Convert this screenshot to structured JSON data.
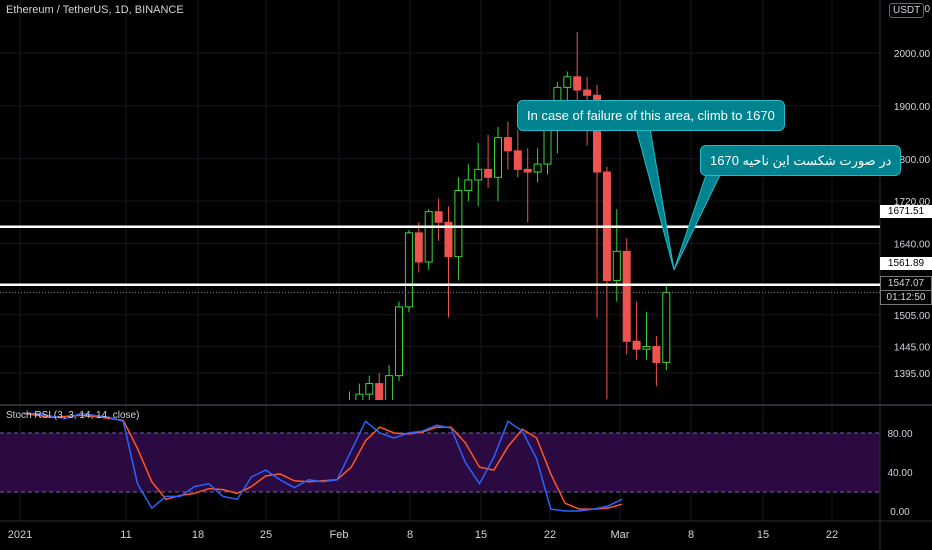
{
  "header": {
    "title": "Ethereum / TetherUS, 1D, BINANCE",
    "currency": "USDT"
  },
  "rsi": {
    "title": "Stoch RSI (3, 3, 14, 14, close)",
    "ticks": [
      "80.00",
      "40.00",
      "0.00"
    ]
  },
  "annotations": {
    "english": "In case of failure of this area, climb to 1670",
    "persian": "در صورت شکست این ناحیه 1670"
  },
  "price_labels": {
    "top_cut": "2100.00",
    "upper_line": "1671.51",
    "lower_line": "1561.89",
    "last_price": "1547.07",
    "countdown": "01:12:50"
  },
  "colors": {
    "up": "#26a69a",
    "up_bright": "#3ad43a",
    "down": "#ef5350",
    "k_line": "#2962ff",
    "d_line": "#ff5722",
    "rsi_band": "#2a0a40",
    "callout": "#00838f"
  },
  "chart_data": {
    "type": "candlestick",
    "title": "Ethereum / TetherUS, 1D, BINANCE",
    "y_ticks": [
      2000,
      1900,
      1800,
      1720,
      1640,
      1505,
      1445,
      1395
    ],
    "y_tick_labels": [
      "2000.00",
      "1900.00",
      "1800.00",
      "1720.00",
      "1640.00",
      "1505.00",
      "1445.00",
      "1395.00"
    ],
    "x_tick_labels": [
      "2021",
      "11",
      "18",
      "25",
      "Feb",
      "8",
      "15",
      "22",
      "Mar",
      "8",
      "15",
      "22"
    ],
    "horizontal_lines": [
      1671.51,
      1561.89
    ],
    "last_price": 1547.07,
    "candles": [
      {
        "d": "Jan 28",
        "o": 1320,
        "h": 1360,
        "l": 1300,
        "c": 1340
      },
      {
        "d": "Jan 29",
        "o": 1340,
        "h": 1375,
        "l": 1320,
        "c": 1355
      },
      {
        "d": "Jan 30",
        "o": 1355,
        "h": 1390,
        "l": 1330,
        "c": 1375
      },
      {
        "d": "Jan 31",
        "o": 1375,
        "h": 1395,
        "l": 1320,
        "c": 1330
      },
      {
        "d": "Feb 1",
        "o": 1330,
        "h": 1410,
        "l": 1305,
        "c": 1390
      },
      {
        "d": "Feb 2",
        "o": 1390,
        "h": 1530,
        "l": 1380,
        "c": 1520
      },
      {
        "d": "Feb 3",
        "o": 1520,
        "h": 1665,
        "l": 1510,
        "c": 1660
      },
      {
        "d": "Feb 4",
        "o": 1660,
        "h": 1680,
        "l": 1585,
        "c": 1605
      },
      {
        "d": "Feb 5",
        "o": 1605,
        "h": 1705,
        "l": 1590,
        "c": 1700
      },
      {
        "d": "Feb 6",
        "o": 1700,
        "h": 1725,
        "l": 1645,
        "c": 1680
      },
      {
        "d": "Feb 7",
        "o": 1680,
        "h": 1710,
        "l": 1500,
        "c": 1615
      },
      {
        "d": "Feb 8",
        "o": 1615,
        "h": 1765,
        "l": 1570,
        "c": 1740
      },
      {
        "d": "Feb 9",
        "o": 1740,
        "h": 1790,
        "l": 1720,
        "c": 1760
      },
      {
        "d": "Feb 10",
        "o": 1760,
        "h": 1830,
        "l": 1710,
        "c": 1780
      },
      {
        "d": "Feb 11",
        "o": 1780,
        "h": 1845,
        "l": 1745,
        "c": 1765
      },
      {
        "d": "Feb 12",
        "o": 1765,
        "h": 1860,
        "l": 1720,
        "c": 1840
      },
      {
        "d": "Feb 13",
        "o": 1840,
        "h": 1870,
        "l": 1780,
        "c": 1815
      },
      {
        "d": "Feb 14",
        "o": 1815,
        "h": 1855,
        "l": 1765,
        "c": 1780
      },
      {
        "d": "Feb 15",
        "o": 1780,
        "h": 1820,
        "l": 1680,
        "c": 1775
      },
      {
        "d": "Feb 16",
        "o": 1775,
        "h": 1820,
        "l": 1755,
        "c": 1790
      },
      {
        "d": "Feb 17",
        "o": 1790,
        "h": 1880,
        "l": 1770,
        "c": 1865
      },
      {
        "d": "Feb 18",
        "o": 1865,
        "h": 1945,
        "l": 1810,
        "c": 1935
      },
      {
        "d": "Feb 19",
        "o": 1935,
        "h": 1965,
        "l": 1905,
        "c": 1955
      },
      {
        "d": "Feb 20",
        "o": 1955,
        "h": 2040,
        "l": 1870,
        "c": 1930
      },
      {
        "d": "Feb 21",
        "o": 1930,
        "h": 1955,
        "l": 1825,
        "c": 1920
      },
      {
        "d": "Feb 22",
        "o": 1920,
        "h": 1940,
        "l": 1500,
        "c": 1775
      },
      {
        "d": "Feb 23",
        "o": 1775,
        "h": 1785,
        "l": 1345,
        "c": 1570
      },
      {
        "d": "Feb 24",
        "o": 1570,
        "h": 1705,
        "l": 1530,
        "c": 1625
      },
      {
        "d": "Feb 25",
        "o": 1625,
        "h": 1650,
        "l": 1430,
        "c": 1455
      },
      {
        "d": "Feb 26",
        "o": 1455,
        "h": 1530,
        "l": 1420,
        "c": 1440
      },
      {
        "d": "Feb 27",
        "o": 1440,
        "h": 1510,
        "l": 1420,
        "c": 1445
      },
      {
        "d": "Feb 28",
        "o": 1445,
        "h": 1465,
        "l": 1370,
        "c": 1415
      },
      {
        "d": "Mar 1",
        "o": 1415,
        "h": 1560,
        "l": 1400,
        "c": 1547
      }
    ],
    "stoch_rsi": {
      "k": [
        100,
        100,
        97,
        95,
        100,
        98,
        96,
        92,
        28,
        3,
        15,
        15,
        25,
        28,
        15,
        12,
        35,
        42,
        32,
        24,
        32,
        30,
        32,
        62,
        92,
        80,
        75,
        80,
        82,
        88,
        85,
        50,
        28,
        55,
        92,
        82,
        54,
        2,
        0,
        0,
        2,
        5,
        12
      ],
      "d": [
        100,
        98,
        96,
        97,
        98,
        97,
        95,
        93,
        64,
        30,
        12,
        16,
        18,
        23,
        22,
        18,
        25,
        36,
        38,
        31,
        30,
        31,
        32,
        45,
        72,
        86,
        80,
        79,
        81,
        86,
        86,
        70,
        45,
        42,
        66,
        84,
        75,
        38,
        8,
        2,
        2,
        3,
        7
      ]
    }
  }
}
